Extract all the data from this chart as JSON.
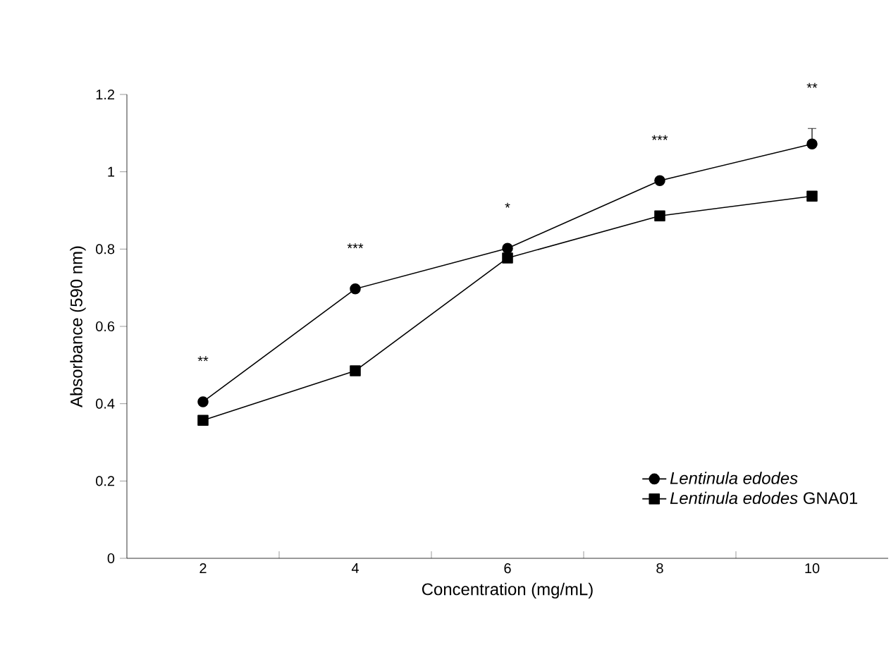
{
  "chart_data": {
    "type": "line",
    "xlabel": "Concentration (mg/mL)",
    "ylabel": "Absorbance (590 nm)",
    "categories": [
      "2",
      "4",
      "6",
      "8",
      "10"
    ],
    "series": [
      {
        "name": "*Lentinula edodes*",
        "color": "#000000",
        "marker": "circle",
        "values": [
          0.405,
          0.697,
          0.802,
          0.977,
          1.072
        ],
        "errors": [
          null,
          null,
          null,
          null,
          0.04
        ]
      },
      {
        "name": "*Lentinula edodes* GNA01",
        "color": "#000000",
        "marker": "square",
        "values": [
          0.357,
          0.485,
          0.777,
          0.886,
          0.937
        ]
      }
    ],
    "ylim": [
      0,
      1.2
    ],
    "yticks": [
      0,
      0.2,
      0.4,
      0.6,
      0.8,
      1,
      1.2
    ],
    "legend": "bottom right",
    "grid": false,
    "line_style": "solid",
    "annotations": [
      "**",
      "***",
      "*",
      "***",
      "**"
    ]
  }
}
